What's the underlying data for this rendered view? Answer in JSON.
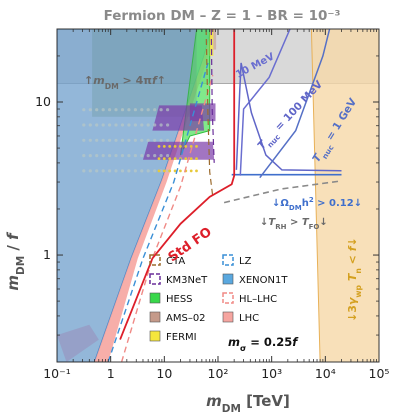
{
  "chart_data": {
    "type": "area",
    "title": "Fermion DM  – Z = 1  – BR = 10⁻³",
    "xlabel": "m_DM  [TeV]",
    "ylabel": "m_DM / f",
    "xscale": "log",
    "yscale": "log",
    "xlim": [
      0.1,
      100000
    ],
    "ylim": [
      0.2,
      30
    ],
    "x_ticks": [
      {
        "v": 0.1,
        "label": "10⁻¹"
      },
      {
        "v": 1,
        "label": "1"
      },
      {
        "v": 10,
        "label": "10"
      },
      {
        "v": 100,
        "label": "10²"
      },
      {
        "v": 1000,
        "label": "10³"
      },
      {
        "v": 10000,
        "label": "10⁴"
      },
      {
        "v": 100000,
        "label": "10⁵"
      }
    ],
    "y_ticks": [
      {
        "v": 1,
        "label": "1"
      },
      {
        "v": 10,
        "label": "10"
      }
    ],
    "legend_position": "bottom-center",
    "legend": [
      {
        "label": "CTA",
        "color": "#9c6b2e",
        "style": "dashed-box"
      },
      {
        "label": "KM3NeT",
        "color": "#6a2f9a",
        "style": "dashed-box"
      },
      {
        "label": "HESS",
        "color": "#38d84a",
        "style": "filled"
      },
      {
        "label": "AMS–02",
        "color": "#c59a8a",
        "style": "filled"
      },
      {
        "label": "FERMI",
        "color": "#f5e63c",
        "style": "filled"
      },
      {
        "label": "LZ",
        "color": "#3a8fd6",
        "style": "dashed-box"
      },
      {
        "label": "XENON1T",
        "color": "#5aa8df",
        "style": "filled"
      },
      {
        "label": "HL–LHC",
        "color": "#f08a86",
        "style": "dashed-box"
      },
      {
        "label": "LHC",
        "color": "#f6a5a0",
        "style": "filled"
      }
    ],
    "note_label": "m_σ = 0.25f",
    "region_labels": {
      "perturbativity": "↑ m_DM > 4πf ↑",
      "relic": "↓ Ω_DM h² > 0.12 ↓",
      "reheat": "↓ T_RH > T_FO ↓",
      "wall": "↓ 3γ_wp T_n < f ↓",
      "std_fo": "Std FO"
    },
    "tnuc_curves": [
      {
        "label": "10 MeV",
        "color": "#6a6ed0",
        "points": [
          [
            260,
            3.3
          ],
          [
            300,
            9.0
          ],
          [
            900,
            14.5
          ],
          [
            2200,
            30
          ]
        ]
      },
      {
        "label": "T_nuc = 100 MeV",
        "color": "#6066c8",
        "points": [
          [
            220,
            3.6
          ],
          [
            255,
            12
          ],
          [
            270,
            18
          ],
          [
            420,
            8.5
          ],
          [
            780,
            4.5
          ],
          [
            1550,
            3.6
          ],
          [
            20000,
            3.55
          ]
        ]
      },
      {
        "label": "T_nuc = 1 GeV",
        "color": "#5570c6",
        "points": [
          [
            600,
            3.2
          ],
          [
            2800,
            6.5
          ],
          [
            9000,
            20
          ],
          [
            12000,
            30
          ]
        ]
      }
    ],
    "relic_curve": {
      "color": "#3f6fcc",
      "points": [
        [
          180,
          3.35
        ],
        [
          20000,
          3.35
        ]
      ]
    },
    "std_fo_curve": {
      "color": "#dd1f2a",
      "points": [
        [
          1.5,
          0.28
        ],
        [
          6,
          0.95
        ],
        [
          20,
          1.6
        ],
        [
          70,
          2.4
        ],
        [
          180,
          2.9
        ],
        [
          200,
          3.3
        ],
        [
          200,
          30
        ]
      ]
    },
    "reheat_curve": {
      "color": "#8a8a8a",
      "points": [
        [
          130,
          2.2
        ],
        [
          1500,
          2.7
        ],
        [
          20000,
          3.05
        ]
      ]
    },
    "wall_band": {
      "color": "#f6d8a8",
      "edge_color": "#e8b158",
      "x_left": [
        5500,
        8000
      ]
    }
  }
}
